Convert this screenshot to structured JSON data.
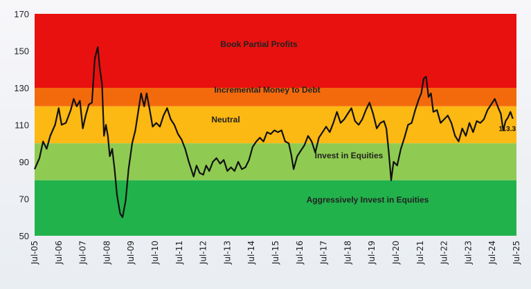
{
  "chart_data": {
    "type": "line",
    "title": "",
    "xlabel": "",
    "ylabel": "",
    "ylim": [
      50,
      170
    ],
    "yticks": [
      50,
      70,
      90,
      110,
      130,
      150,
      170
    ],
    "xticks": [
      "Jul-05",
      "Jul-06",
      "Jul-07",
      "Jul-08",
      "Jul-09",
      "Jul-10",
      "Jul-11",
      "Jul-12",
      "Jul-13",
      "Jul-14",
      "Jul-15",
      "Jul-16",
      "Jul-17",
      "Jul-18",
      "Jul-19",
      "Jul-20",
      "Jul-21",
      "Jul-22",
      "Jul-23",
      "Jul-24",
      "Jul-25"
    ],
    "zones": [
      {
        "label": "Book Partial Profits",
        "from": 130,
        "to": 170,
        "color": "#e8110f"
      },
      {
        "label": "Incremental Money to Debt",
        "from": 120,
        "to": 130,
        "color": "#f36a0c"
      },
      {
        "label": "Neutral",
        "from": 100,
        "to": 120,
        "color": "#fcb813"
      },
      {
        "label": "Invest in Equities",
        "from": 80,
        "to": 100,
        "color": "#8fcb52"
      },
      {
        "label": "Aggressively Invest in Equities",
        "from": 50,
        "to": 80,
        "color": "#22b24c"
      }
    ],
    "series": [
      {
        "line_color": "#111111",
        "points": [
          [
            2005.5,
            86
          ],
          [
            2005.7,
            92
          ],
          [
            2005.85,
            101
          ],
          [
            2006.0,
            97
          ],
          [
            2006.15,
            104
          ],
          [
            2006.35,
            110
          ],
          [
            2006.5,
            119
          ],
          [
            2006.62,
            110
          ],
          [
            2006.8,
            111
          ],
          [
            2007.0,
            118
          ],
          [
            2007.12,
            124
          ],
          [
            2007.25,
            120
          ],
          [
            2007.38,
            123
          ],
          [
            2007.5,
            108
          ],
          [
            2007.62,
            115
          ],
          [
            2007.75,
            121
          ],
          [
            2007.88,
            122
          ],
          [
            2008.0,
            146
          ],
          [
            2008.12,
            152
          ],
          [
            2008.2,
            141
          ],
          [
            2008.3,
            132
          ],
          [
            2008.38,
            104
          ],
          [
            2008.46,
            110
          ],
          [
            2008.54,
            104
          ],
          [
            2008.62,
            93
          ],
          [
            2008.72,
            97
          ],
          [
            2008.82,
            86
          ],
          [
            2008.92,
            72
          ],
          [
            2009.05,
            62
          ],
          [
            2009.15,
            60
          ],
          [
            2009.28,
            69
          ],
          [
            2009.4,
            86
          ],
          [
            2009.55,
            100
          ],
          [
            2009.68,
            107
          ],
          [
            2009.8,
            117
          ],
          [
            2009.92,
            127
          ],
          [
            2010.05,
            120
          ],
          [
            2010.15,
            127
          ],
          [
            2010.28,
            118
          ],
          [
            2010.4,
            109
          ],
          [
            2010.55,
            111
          ],
          [
            2010.7,
            109
          ],
          [
            2010.85,
            115
          ],
          [
            2011.0,
            119
          ],
          [
            2011.15,
            113
          ],
          [
            2011.3,
            110
          ],
          [
            2011.45,
            105
          ],
          [
            2011.6,
            102
          ],
          [
            2011.75,
            97
          ],
          [
            2011.9,
            90
          ],
          [
            2012.0,
            86
          ],
          [
            2012.1,
            82
          ],
          [
            2012.22,
            88
          ],
          [
            2012.35,
            84
          ],
          [
            2012.5,
            83
          ],
          [
            2012.62,
            88
          ],
          [
            2012.75,
            85
          ],
          [
            2012.9,
            90
          ],
          [
            2013.05,
            92
          ],
          [
            2013.2,
            89
          ],
          [
            2013.35,
            91
          ],
          [
            2013.5,
            85
          ],
          [
            2013.65,
            87
          ],
          [
            2013.8,
            85
          ],
          [
            2013.95,
            90
          ],
          [
            2014.1,
            86
          ],
          [
            2014.25,
            87
          ],
          [
            2014.4,
            91
          ],
          [
            2014.55,
            98
          ],
          [
            2014.7,
            101
          ],
          [
            2014.85,
            103
          ],
          [
            2015.0,
            101
          ],
          [
            2015.15,
            106
          ],
          [
            2015.3,
            105
          ],
          [
            2015.45,
            107
          ],
          [
            2015.6,
            106
          ],
          [
            2015.75,
            107
          ],
          [
            2015.9,
            101
          ],
          [
            2016.05,
            100
          ],
          [
            2016.15,
            94
          ],
          [
            2016.25,
            86
          ],
          [
            2016.4,
            93
          ],
          [
            2016.55,
            96
          ],
          [
            2016.7,
            99
          ],
          [
            2016.85,
            104
          ],
          [
            2017.0,
            101
          ],
          [
            2017.15,
            95
          ],
          [
            2017.3,
            103
          ],
          [
            2017.45,
            106
          ],
          [
            2017.6,
            109
          ],
          [
            2017.75,
            106
          ],
          [
            2017.9,
            111
          ],
          [
            2018.05,
            117
          ],
          [
            2018.2,
            111
          ],
          [
            2018.35,
            113
          ],
          [
            2018.5,
            116
          ],
          [
            2018.65,
            119
          ],
          [
            2018.8,
            112
          ],
          [
            2018.95,
            110
          ],
          [
            2019.1,
            113
          ],
          [
            2019.25,
            118
          ],
          [
            2019.4,
            122
          ],
          [
            2019.55,
            116
          ],
          [
            2019.7,
            108
          ],
          [
            2019.85,
            111
          ],
          [
            2020.0,
            112
          ],
          [
            2020.1,
            108
          ],
          [
            2020.2,
            95
          ],
          [
            2020.3,
            80
          ],
          [
            2020.4,
            90
          ],
          [
            2020.55,
            88
          ],
          [
            2020.7,
            97
          ],
          [
            2020.85,
            103
          ],
          [
            2021.0,
            110
          ],
          [
            2021.15,
            111
          ],
          [
            2021.3,
            118
          ],
          [
            2021.45,
            124
          ],
          [
            2021.55,
            127
          ],
          [
            2021.65,
            135
          ],
          [
            2021.75,
            136
          ],
          [
            2021.85,
            125
          ],
          [
            2021.95,
            127
          ],
          [
            2022.05,
            117
          ],
          [
            2022.2,
            118
          ],
          [
            2022.35,
            111
          ],
          [
            2022.5,
            113
          ],
          [
            2022.65,
            115
          ],
          [
            2022.8,
            111
          ],
          [
            2022.95,
            104
          ],
          [
            2023.1,
            101
          ],
          [
            2023.25,
            108
          ],
          [
            2023.4,
            104
          ],
          [
            2023.55,
            111
          ],
          [
            2023.7,
            106
          ],
          [
            2023.85,
            112
          ],
          [
            2024.0,
            111
          ],
          [
            2024.15,
            113
          ],
          [
            2024.3,
            118
          ],
          [
            2024.45,
            121
          ],
          [
            2024.6,
            124
          ],
          [
            2024.75,
            119
          ],
          [
            2024.85,
            116
          ],
          [
            2024.95,
            107
          ],
          [
            2025.05,
            112
          ],
          [
            2025.15,
            114
          ],
          [
            2025.25,
            117
          ],
          [
            2025.35,
            113.3
          ]
        ]
      }
    ],
    "annotations": [
      {
        "text": "113.3",
        "x": 2025.35,
        "y": 113.3
      }
    ]
  }
}
